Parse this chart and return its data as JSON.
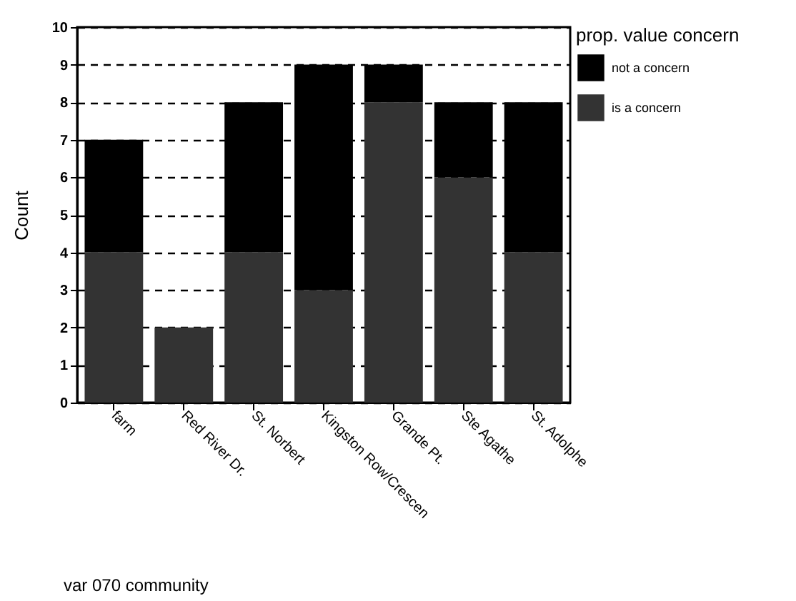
{
  "chart_data": {
    "type": "bar",
    "stacked": true,
    "xlabel": "var 070 community",
    "ylabel": "Count",
    "legend_title": "prop. value concern",
    "categories": [
      "farm",
      "Red River Dr.",
      "St. Norbert",
      "Kingston Row/Crescen",
      "Grande Pt.",
      "Ste Agathe",
      "St. Adolphe"
    ],
    "series": [
      {
        "name": "is a concern",
        "color": "#333333",
        "values": [
          4,
          2,
          4,
          3,
          8,
          6,
          4
        ]
      },
      {
        "name": "not a concern",
        "color": "#000000",
        "values": [
          3,
          0,
          4,
          6,
          1,
          2,
          4
        ]
      }
    ],
    "ylim": [
      0,
      10
    ],
    "yticks": [
      0,
      1,
      2,
      3,
      4,
      5,
      6,
      7,
      8,
      9,
      10
    ],
    "grid": "y",
    "legend": "right"
  }
}
